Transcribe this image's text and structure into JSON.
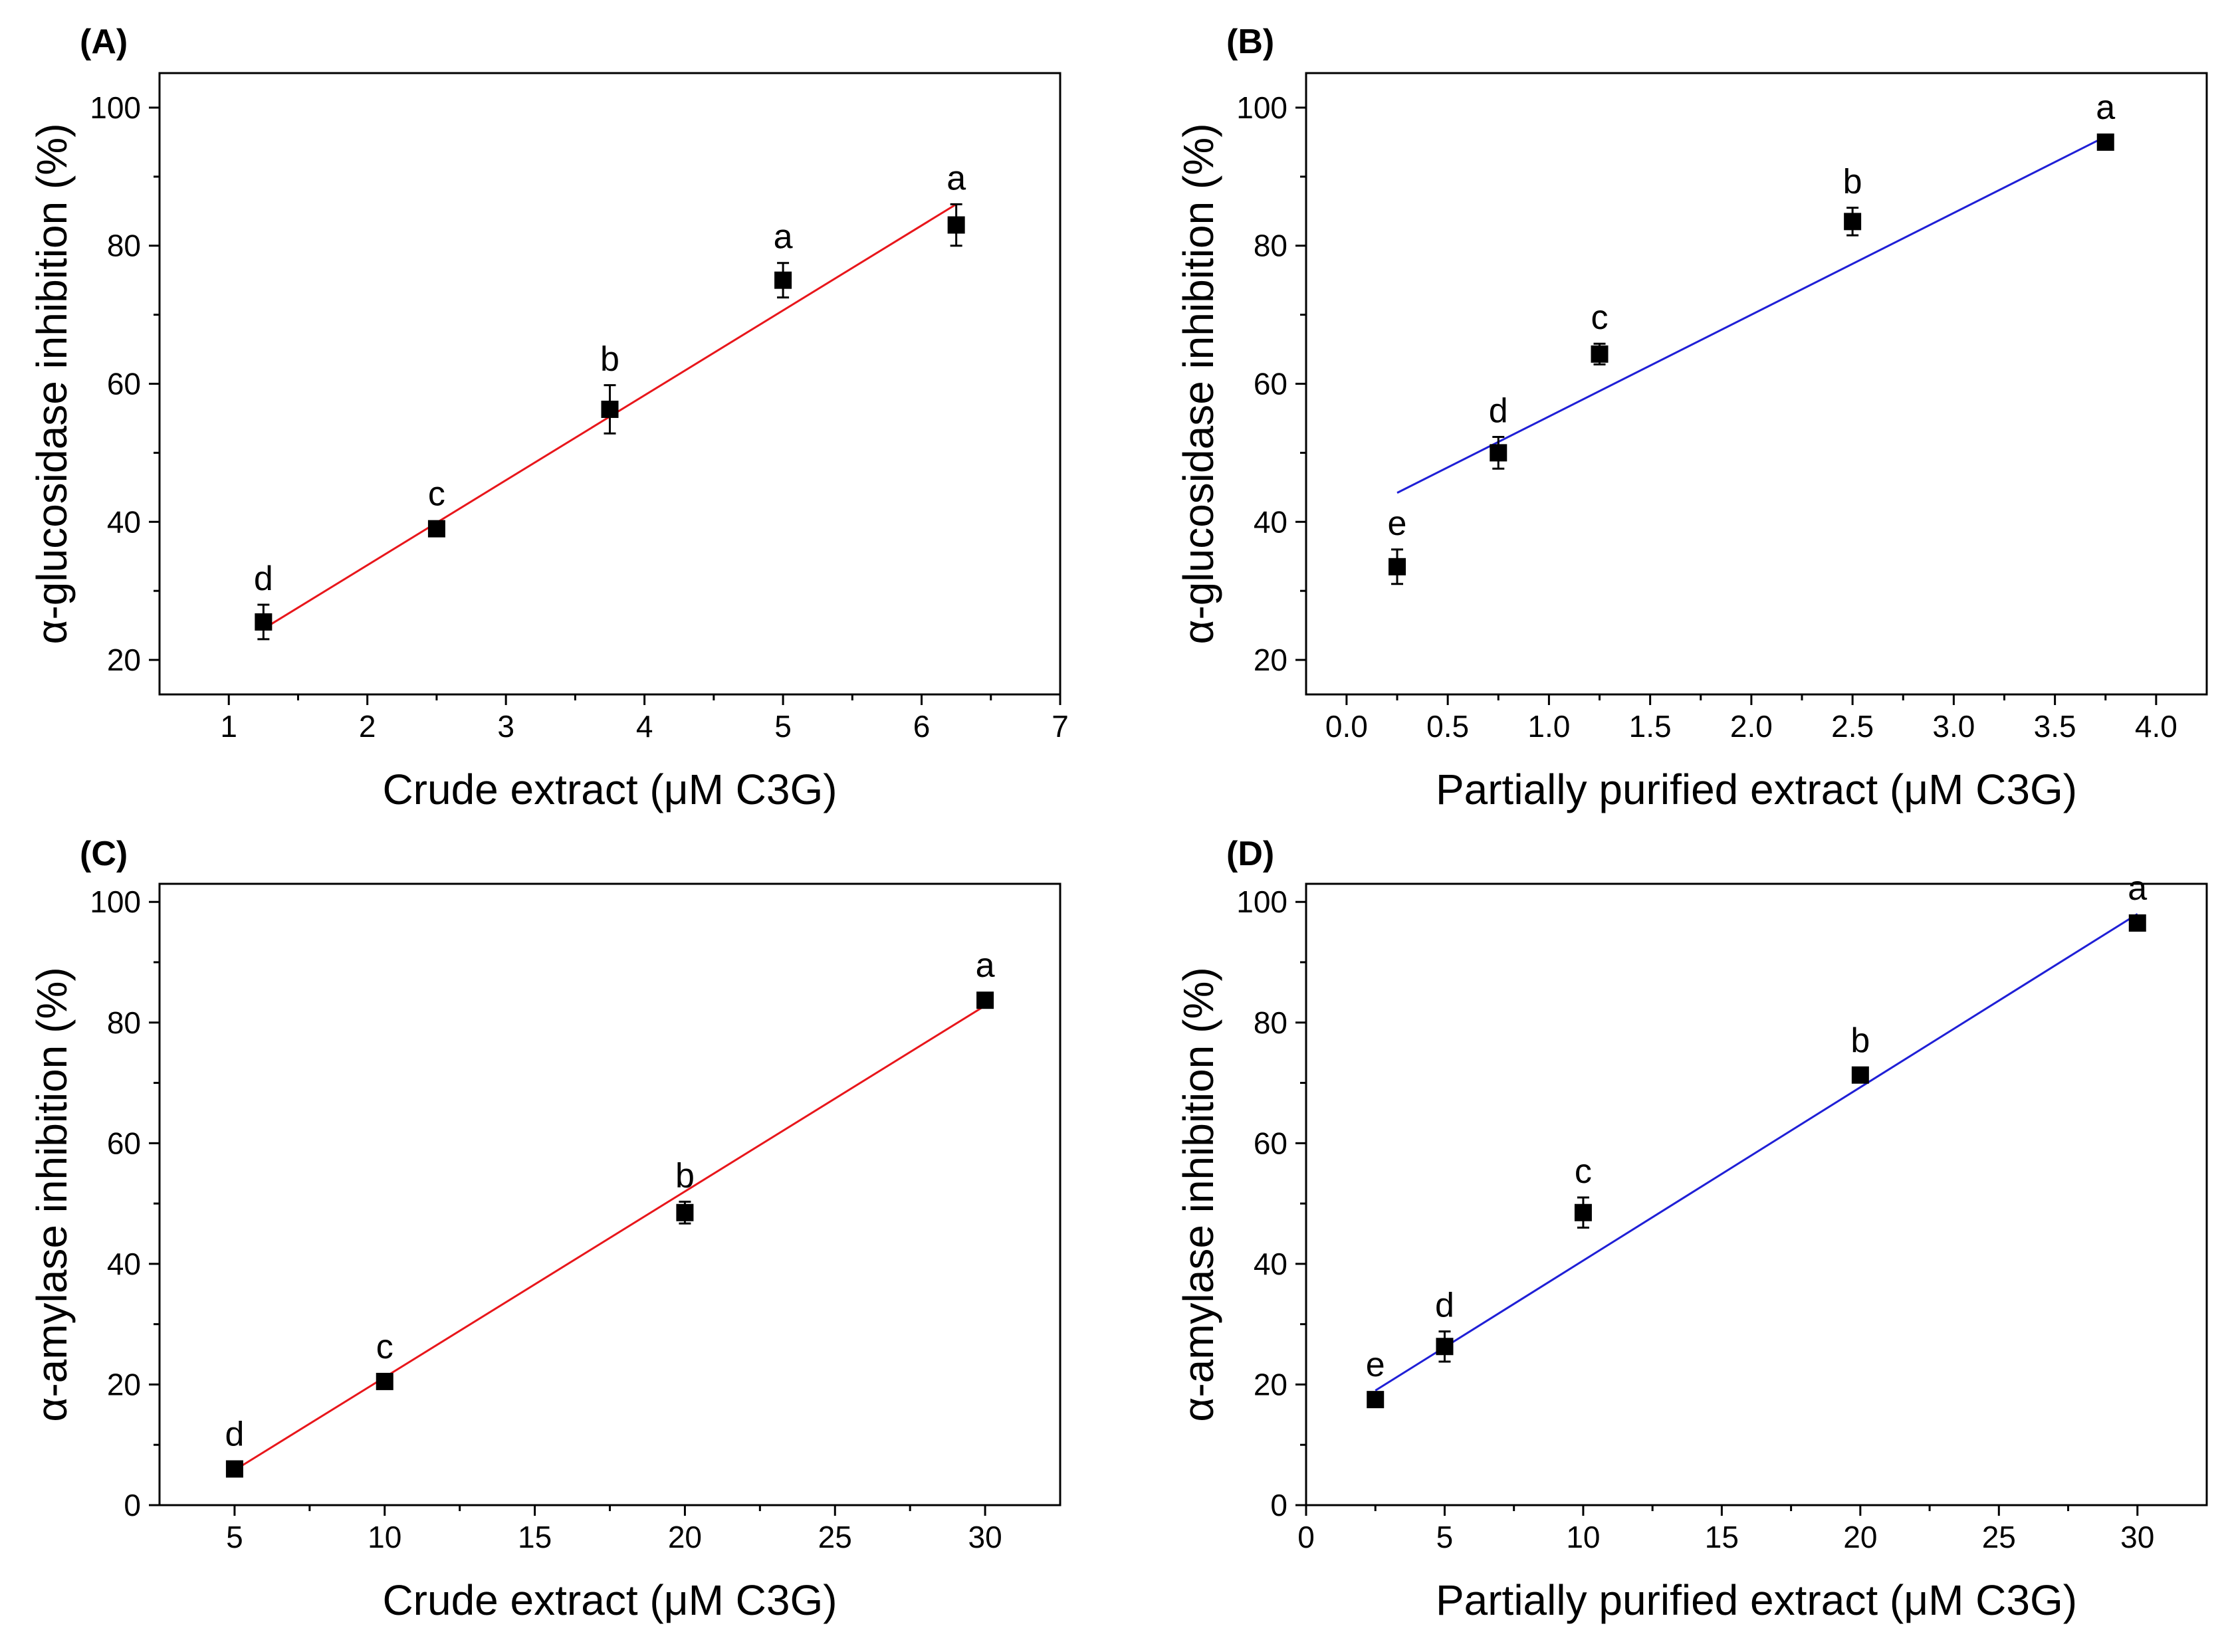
{
  "chart_data": [
    {
      "type": "scatter",
      "panel_label": "(A)",
      "xlabel": "Crude extract (μM C3G)",
      "ylabel": "α-glucosidase inhibition (%)",
      "xlim": [
        0.5,
        7
      ],
      "ylim": [
        15,
        105
      ],
      "xticks": [
        1,
        2,
        3,
        4,
        5,
        6,
        7
      ],
      "xtick_labels": [
        "1",
        "2",
        "3",
        "4",
        "5",
        "6",
        "7"
      ],
      "yticks": [
        20,
        40,
        60,
        80,
        100
      ],
      "ytick_labels": [
        "20",
        "40",
        "60",
        "80",
        "100"
      ],
      "series": [
        {
          "name": "Crude extract",
          "x": [
            1.25,
            2.5,
            3.75,
            5.0,
            6.25
          ],
          "y": [
            25.5,
            39.0,
            56.3,
            75.0,
            83.0
          ],
          "err": [
            2.5,
            0.8,
            3.5,
            2.5,
            3.0
          ],
          "letters": [
            "d",
            "c",
            "b",
            "a",
            "a"
          ]
        }
      ],
      "fit": {
        "x": [
          1.25,
          6.25
        ],
        "y": [
          24.5,
          86.0
        ],
        "color": "#e8161b"
      }
    },
    {
      "type": "scatter",
      "panel_label": "(B)",
      "xlabel": "Partially purified extract (μM C3G)",
      "ylabel": "α-glucosidase inhibition (%)",
      "xlim": [
        -0.2,
        4.25
      ],
      "ylim": [
        15,
        105
      ],
      "xticks": [
        0.0,
        0.5,
        1.0,
        1.5,
        2.0,
        2.5,
        3.0,
        3.5,
        4.0
      ],
      "xtick_labels": [
        "0.0",
        "0.5",
        "1.0",
        "1.5",
        "2.0",
        "2.5",
        "3.0",
        "3.5",
        "4.0"
      ],
      "yticks": [
        20,
        40,
        60,
        80,
        100
      ],
      "ytick_labels": [
        "20",
        "40",
        "60",
        "80",
        "100"
      ],
      "series": [
        {
          "name": "Partially purified extract",
          "x": [
            0.25,
            0.75,
            1.25,
            2.5,
            3.75
          ],
          "y": [
            33.5,
            50.0,
            64.3,
            83.5,
            95.0
          ],
          "err": [
            2.5,
            2.3,
            1.5,
            2.0,
            0.6
          ],
          "letters": [
            "e",
            "d",
            "c",
            "b",
            "a"
          ]
        }
      ],
      "fit": {
        "x": [
          0.25,
          3.75
        ],
        "y": [
          44.2,
          95.8
        ],
        "color": "#1f1fd6"
      }
    },
    {
      "type": "scatter",
      "panel_label": "(C)",
      "xlabel": "Crude extract (μM C3G)",
      "ylabel": "α-amylase inhibition (%)",
      "xlim": [
        2.5,
        32.5
      ],
      "ylim": [
        0,
        103
      ],
      "xticks": [
        5,
        10,
        15,
        20,
        25,
        30
      ],
      "xtick_labels": [
        "5",
        "10",
        "15",
        "20",
        "25",
        "30"
      ],
      "yticks": [
        0,
        20,
        40,
        60,
        80,
        100
      ],
      "ytick_labels": [
        "0",
        "20",
        "40",
        "60",
        "80",
        "100"
      ],
      "series": [
        {
          "name": "Crude extract",
          "x": [
            5,
            10,
            20,
            30
          ],
          "y": [
            6.0,
            20.5,
            48.5,
            83.7
          ],
          "err": [
            0.8,
            0.8,
            1.8,
            1.2
          ],
          "letters": [
            "d",
            "c",
            "b",
            "a"
          ]
        }
      ],
      "fit": {
        "x": [
          5,
          30
        ],
        "y": [
          5.8,
          82.8
        ],
        "color": "#e8161b"
      }
    },
    {
      "type": "scatter",
      "panel_label": "(D)",
      "xlabel": "Partially purified extract (μM C3G)",
      "ylabel": "α-amylase inhibition (%)",
      "xlim": [
        0,
        32.5
      ],
      "ylim": [
        0,
        103
      ],
      "xticks": [
        0,
        5,
        10,
        15,
        20,
        25,
        30
      ],
      "xtick_labels": [
        "0",
        "5",
        "10",
        "15",
        "20",
        "25",
        "30"
      ],
      "yticks": [
        0,
        20,
        40,
        60,
        80,
        100
      ],
      "ytick_labels": [
        "0",
        "20",
        "40",
        "60",
        "80",
        "100"
      ],
      "series": [
        {
          "name": "Partially purified extract",
          "x": [
            2.5,
            5,
            10,
            20,
            30
          ],
          "y": [
            17.5,
            26.3,
            48.5,
            71.3,
            96.5
          ],
          "err": [
            0.8,
            2.5,
            2.5,
            1.2,
            1.0
          ],
          "letters": [
            "e",
            "d",
            "c",
            "b",
            "a"
          ]
        }
      ],
      "fit": {
        "x": [
          2.5,
          30
        ],
        "y": [
          19.0,
          98.0
        ],
        "color": "#1f1fd6"
      }
    }
  ]
}
